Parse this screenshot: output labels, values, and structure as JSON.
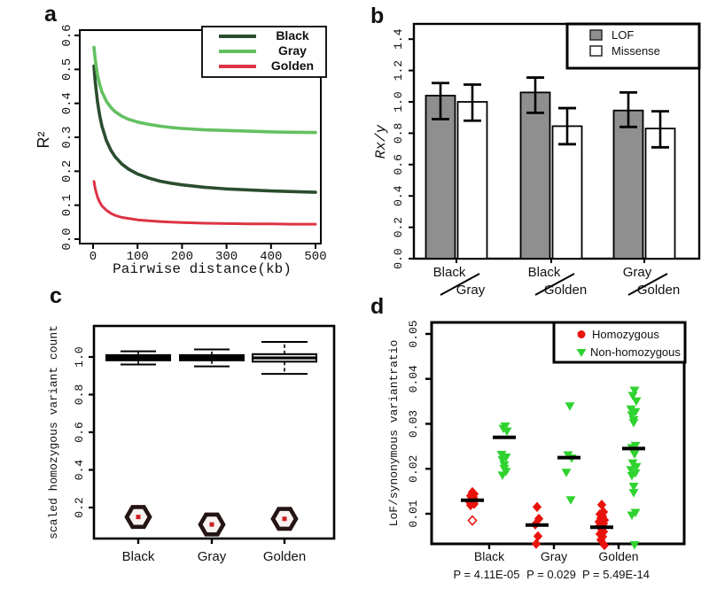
{
  "figure_bg": "#ffffff",
  "panels": {
    "a": {
      "letter": "a"
    },
    "b": {
      "letter": "b"
    },
    "c": {
      "letter": "c"
    },
    "d": {
      "letter": "d"
    }
  },
  "palette": {
    "black_series": "#2a4d2e",
    "gray_series": "#63c061",
    "golden_series": "#dd3344",
    "black_label": "#1b3a28",
    "gray_label": "#2c9b53",
    "golden_label": "#d8243a",
    "bar_gray": "#8f8f8f",
    "marker_red": "#e8130c",
    "marker_green": "#2fd32f"
  },
  "chart_data": [
    {
      "id": "a",
      "type": "line",
      "xlabel": "Pairwise distance(kb)",
      "ylabel": "R²",
      "xlim": [
        0,
        500
      ],
      "ylim": [
        0,
        0.6
      ],
      "xticks": [
        "0",
        "100",
        "200",
        "300",
        "400",
        "500"
      ],
      "yticks": [
        "0.0",
        "0.1",
        "0.2",
        "0.3",
        "0.4",
        "0.5",
        "0.6"
      ],
      "legend": {
        "position": "top-right",
        "entries": [
          {
            "label": "Black",
            "line_color": "#2a4d2e",
            "text_color": "#1b3a28"
          },
          {
            "label": "Gray",
            "line_color": "#63c061",
            "text_color": "#2c9b53"
          },
          {
            "label": "Golden",
            "line_color": "#dd3344",
            "text_color": "#d8243a"
          }
        ]
      },
      "series": [
        {
          "name": "Black",
          "color": "#2a4d2e",
          "width": 3.6,
          "points": [
            [
              2,
              0.51
            ],
            [
              5,
              0.462
            ],
            [
              10,
              0.405
            ],
            [
              15,
              0.364
            ],
            [
              20,
              0.333
            ],
            [
              30,
              0.29
            ],
            [
              40,
              0.262
            ],
            [
              50,
              0.242
            ],
            [
              65,
              0.221
            ],
            [
              80,
              0.206
            ],
            [
              100,
              0.192
            ],
            [
              125,
              0.18
            ],
            [
              150,
              0.171
            ],
            [
              175,
              0.165
            ],
            [
              200,
              0.16
            ],
            [
              250,
              0.153
            ],
            [
              300,
              0.148
            ],
            [
              350,
              0.145
            ],
            [
              400,
              0.142
            ],
            [
              450,
              0.14
            ],
            [
              500,
              0.138
            ]
          ]
        },
        {
          "name": "Gray",
          "color": "#63c061",
          "width": 3.6,
          "points": [
            [
              2,
              0.565
            ],
            [
              5,
              0.528
            ],
            [
              10,
              0.484
            ],
            [
              15,
              0.455
            ],
            [
              20,
              0.434
            ],
            [
              30,
              0.406
            ],
            [
              40,
              0.388
            ],
            [
              50,
              0.375
            ],
            [
              65,
              0.362
            ],
            [
              80,
              0.353
            ],
            [
              100,
              0.345
            ],
            [
              125,
              0.338
            ],
            [
              150,
              0.333
            ],
            [
              175,
              0.329
            ],
            [
              200,
              0.326
            ],
            [
              250,
              0.322
            ],
            [
              300,
              0.32
            ],
            [
              350,
              0.318
            ],
            [
              400,
              0.316
            ],
            [
              450,
              0.315
            ],
            [
              500,
              0.314
            ]
          ]
        },
        {
          "name": "Golden",
          "color": "#dd3344",
          "width": 3.0,
          "points": [
            [
              2,
              0.17
            ],
            [
              5,
              0.148
            ],
            [
              10,
              0.124
            ],
            [
              15,
              0.109
            ],
            [
              20,
              0.098
            ],
            [
              30,
              0.085
            ],
            [
              40,
              0.076
            ],
            [
              50,
              0.07
            ],
            [
              65,
              0.064
            ],
            [
              80,
              0.061
            ],
            [
              100,
              0.057
            ],
            [
              125,
              0.054
            ],
            [
              150,
              0.052
            ],
            [
              175,
              0.05
            ],
            [
              200,
              0.049
            ],
            [
              250,
              0.047
            ],
            [
              300,
              0.046
            ],
            [
              350,
              0.045
            ],
            [
              400,
              0.045
            ],
            [
              450,
              0.044
            ],
            [
              500,
              0.044
            ]
          ]
        }
      ]
    },
    {
      "id": "b",
      "type": "bar",
      "ylabel": "Rx/y",
      "ylim": [
        0,
        1.4
      ],
      "yticks": [
        "0.0",
        "0.2",
        "0.4",
        "0.6",
        "0.8",
        "1.0",
        "1.2",
        "1.4"
      ],
      "legend": {
        "position": "top-right",
        "entries": [
          {
            "label": "LOF",
            "fill": "#8f8f8f"
          },
          {
            "label": "Missense",
            "fill": "#ffffff"
          }
        ]
      },
      "groups": [
        {
          "top_label": "Black",
          "top_color": "#1b3a28",
          "bottom_label": "Gray",
          "bottom_color": "#2c9b53"
        },
        {
          "top_label": "Black",
          "top_color": "#1b3a28",
          "bottom_label": "Golden",
          "bottom_color": "#d8243a"
        },
        {
          "top_label": "Gray",
          "top_color": "#2c9b53",
          "bottom_label": "Golden",
          "bottom_color": "#d8243a"
        }
      ],
      "series": [
        {
          "name": "LOF",
          "fill": "#8f8f8f",
          "values": [
            1.04,
            1.06,
            0.945
          ],
          "err_low": [
            0.89,
            0.93,
            0.84
          ],
          "err_high": [
            1.12,
            1.155,
            1.06
          ]
        },
        {
          "name": "Missense",
          "fill": "#ffffff",
          "values": [
            1.0,
            0.845,
            0.83
          ],
          "err_low": [
            0.88,
            0.73,
            0.71
          ],
          "err_high": [
            1.11,
            0.96,
            0.94
          ]
        }
      ]
    },
    {
      "id": "c",
      "type": "boxplot",
      "ylabel": "scaled homozygous variant count",
      "ylim": [
        0.035,
        1.165
      ],
      "yticks": [
        "0.2",
        "0.4",
        "0.6",
        "0.8",
        "1.0"
      ],
      "outlier_marker": "hexagon-with-red-dot",
      "categories": [
        {
          "label": "Black",
          "label_color": "#1b3a28",
          "q1": 0.982,
          "median": 0.995,
          "q3": 1.01,
          "whisker_low": 0.96,
          "whisker_high": 1.03,
          "box_fill": "#000000",
          "cap_half": 20,
          "outlier": 0.15
        },
        {
          "label": "Gray",
          "label_color": "#2c9b53",
          "q1": 0.982,
          "median": 0.995,
          "q3": 1.01,
          "whisker_low": 0.95,
          "whisker_high": 1.04,
          "box_fill": "#000000",
          "cap_half": 20,
          "outlier": 0.11
        },
        {
          "label": "Golden",
          "label_color": "#d8243a",
          "q1": 0.975,
          "median": 0.995,
          "q3": 1.015,
          "whisker_low": 0.91,
          "whisker_high": 1.08,
          "box_fill": "#ededed",
          "cap_half": 26,
          "outlier": 0.14
        }
      ]
    },
    {
      "id": "d",
      "type": "scatter",
      "ylabel": "LoF/synonymous variantratio",
      "ylim": [
        0.0033,
        0.0527
      ],
      "yticks": [
        "0.01",
        "0.02",
        "0.03",
        "0.04",
        "0.05"
      ],
      "legend": {
        "position": "top-right",
        "entries": [
          {
            "label": "Homozygous",
            "marker": "circle",
            "color": "#e8130c"
          },
          {
            "label": "Non-homozygous",
            "marker": "triangle-down",
            "color": "#2fd32f"
          }
        ]
      },
      "groups": [
        {
          "label": "Black",
          "label_color": "#1b3a28",
          "p_label": "P = 4.11E-05",
          "homozygous": {
            "median": 0.013,
            "values": [
              0.0148,
              0.0144,
              0.014,
              0.0137,
              0.0133,
              0.013,
              0.0126,
              0.0122,
              0.0119
            ],
            "open_values": [
              0.0085
            ]
          },
          "non_homozygous": {
            "median": 0.027,
            "values": [
              0.0295,
              0.029,
              0.0284,
              0.0232,
              0.0226,
              0.022,
              0.0209,
              0.0201,
              0.0194,
              0.0186
            ]
          }
        },
        {
          "label": "Gray",
          "label_color": "#2c9b53",
          "p_label": "P = 0.029",
          "homozygous": {
            "median": 0.0075,
            "values": [
              0.0115,
              0.0089,
              0.0076,
              0.005,
              0.0033
            ],
            "open_values": []
          },
          "non_homozygous": {
            "median": 0.0225,
            "values": [
              0.034,
              0.0231,
              0.0224,
              0.0192,
              0.0131
            ]
          }
        },
        {
          "label": "Golden",
          "label_color": "#d8243a",
          "p_label": "P = 5.49E-14",
          "homozygous": {
            "median": 0.007,
            "values": [
              0.012,
              0.0104,
              0.0099,
              0.0094,
              0.009,
              0.0086,
              0.0082,
              0.0078,
              0.0074,
              0.007,
              0.0065,
              0.006,
              0.0055,
              0.0049,
              0.0042,
              0.003
            ],
            "open_values": []
          },
          "non_homozygous": {
            "median": 0.0245,
            "values": [
              0.0375,
              0.0363,
              0.0351,
              0.0333,
              0.0327,
              0.032,
              0.0309,
              0.0303,
              0.0252,
              0.0247,
              0.0233,
              0.0213,
              0.0205,
              0.0198,
              0.0191,
              0.0185,
              0.0161,
              0.0147,
              0.0103,
              0.0097,
              0.0031
            ]
          }
        }
      ]
    }
  ]
}
